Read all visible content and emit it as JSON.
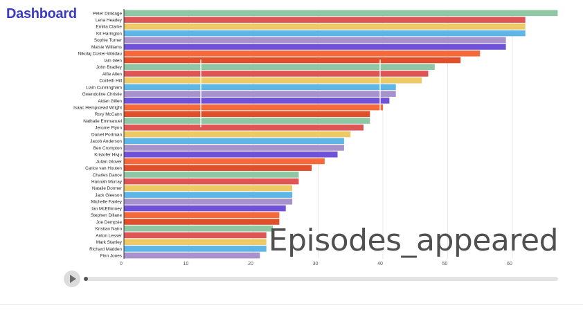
{
  "header": {
    "title": "Dashboard"
  },
  "watermark": "Episodes_appeared",
  "player": {
    "play_icon": "play-icon"
  },
  "chart_data": {
    "type": "bar",
    "orientation": "horizontal",
    "title": "",
    "xlabel": "",
    "ylabel": "",
    "xlim": [
      0,
      67
    ],
    "xticks": [
      0,
      10,
      20,
      30,
      40,
      50,
      60
    ],
    "grid": true,
    "categories": [
      "Peter Dinklage",
      "Lena Headey",
      "Emilia Clarke",
      "Kit Harington",
      "Sophie Turner",
      "Maisie Williams",
      "Nikolaj Coster-Waldau",
      "Iain Glen",
      "John Bradley",
      "Alfie Allen",
      "Conleth Hill",
      "Liam Cunningham",
      "Gwendoline Christie",
      "Aidan Gillen",
      "Isaac Hempstead Wright",
      "Rory McCann",
      "Nathalie Emmanuel",
      "Jerome Flynn",
      "Daniel Portman",
      "Jacob Anderson",
      "Ben Crompton",
      "Kristofer Hivju",
      "Julian Glover",
      "Carice van Houten",
      "Charles Dance",
      "Hannah Murray",
      "Natalie Dormer",
      "Jack Gleeson",
      "Michelle Fairley",
      "Ian McElhinney",
      "Stephen Dillane",
      "Joe Dempsie",
      "Kristian Nairn",
      "Anton Lesser",
      "Mark Stanley",
      "Richard Madden",
      "Finn Jones"
    ],
    "values": [
      67,
      62,
      62,
      62,
      59,
      59,
      55,
      52,
      48,
      47,
      46,
      42,
      42,
      41,
      40,
      38,
      38,
      37,
      35,
      34,
      34,
      33,
      31,
      29,
      27,
      27,
      26,
      26,
      26,
      25,
      24,
      24,
      23,
      22,
      22,
      22,
      21
    ],
    "colors": [
      "#8fc6a4",
      "#dd5555",
      "#eeca66",
      "#5db6e6",
      "#a892cc",
      "#6f52d8",
      "#f6693a",
      "#e14e2a",
      "#8fc6a4",
      "#dd5555",
      "#eeca66",
      "#5db6e6",
      "#a892cc",
      "#6f52d8",
      "#f6693a",
      "#e14e2a",
      "#8fc6a4",
      "#dd5555",
      "#eeca66",
      "#5db6e6",
      "#a892cc",
      "#6f52d8",
      "#f6693a",
      "#e14e2a",
      "#8fc6a4",
      "#dd5555",
      "#eeca66",
      "#5db6e6",
      "#a892cc",
      "#6f52d8",
      "#f6693a",
      "#e14e2a",
      "#8fc6a4",
      "#dd5555",
      "#eeca66",
      "#5db6e6",
      "#a892cc"
    ]
  }
}
